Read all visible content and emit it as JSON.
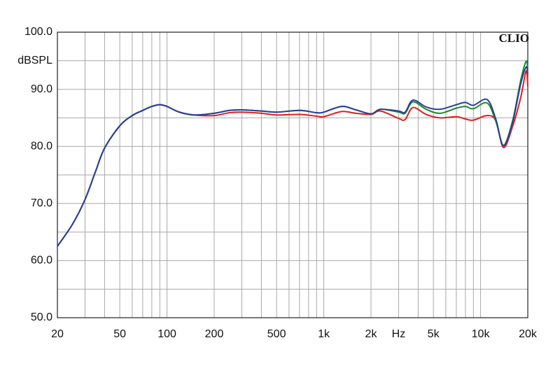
{
  "chart_data": {
    "type": "line",
    "y_label": "dBSPL",
    "badge": "CLIO",
    "xscale": "log",
    "xlim": [
      20,
      20000
    ],
    "ylim": [
      50,
      100
    ],
    "xticks": [
      20,
      50,
      100,
      200,
      500,
      {
        "value": 1000,
        "label": "1k"
      },
      {
        "value": 2000,
        "label": "2k"
      },
      {
        "value": 3000,
        "label": "Hz"
      },
      {
        "value": 5000,
        "label": "5k"
      },
      {
        "value": 10000,
        "label": "10k"
      },
      {
        "value": 20000,
        "label": "20k"
      }
    ],
    "yticks": [
      {
        "value": 50,
        "label": "50.0"
      },
      {
        "value": 60,
        "label": "60.0"
      },
      {
        "value": 70,
        "label": "70.0"
      },
      {
        "value": 80,
        "label": "80.0"
      },
      {
        "value": 90,
        "label": "90.0"
      },
      {
        "value": 100,
        "label": "100.0"
      }
    ],
    "xgrid": [
      20,
      30,
      40,
      50,
      60,
      70,
      80,
      90,
      100,
      200,
      300,
      400,
      500,
      600,
      700,
      800,
      900,
      1000,
      2000,
      3000,
      4000,
      5000,
      6000,
      7000,
      8000,
      9000,
      10000,
      20000
    ],
    "ygrid": [
      50,
      55,
      60,
      65,
      70,
      75,
      80,
      85,
      90,
      95,
      100
    ],
    "grid": true,
    "x": [
      20,
      25,
      30,
      35,
      40,
      50,
      60,
      70,
      80,
      90,
      100,
      120,
      150,
      200,
      250,
      300,
      400,
      500,
      700,
      900,
      1000,
      1300,
      1600,
      2000,
      2300,
      3000,
      3300,
      3700,
      4500,
      5500,
      7000,
      8000,
      9000,
      11000,
      12500,
      14000,
      16000,
      18000,
      19500,
      20000
    ],
    "series": [
      {
        "color": "#e01e1e",
        "values": [
          62.5,
          66.4,
          70.7,
          75.6,
          79.7,
          83.6,
          85.4,
          86.3,
          87.0,
          87.3,
          87.0,
          86.0,
          85.5,
          85.4,
          85.9,
          86.0,
          85.8,
          85.5,
          85.6,
          85.3,
          85.2,
          86.1,
          85.8,
          85.6,
          86.2,
          84.9,
          84.7,
          86.8,
          85.6,
          85.0,
          85.2,
          84.8,
          84.6,
          85.4,
          84.5,
          79.8,
          83.5,
          88.5,
          93.2,
          90.5
        ]
      },
      {
        "color": "#1c8a2c",
        "values": [
          62.5,
          66.4,
          70.7,
          75.6,
          79.7,
          83.6,
          85.4,
          86.3,
          87.0,
          87.3,
          87.0,
          86.0,
          85.5,
          85.8,
          86.3,
          86.4,
          86.2,
          86.0,
          86.3,
          85.9,
          86.0,
          87.0,
          86.4,
          85.7,
          86.5,
          86.0,
          85.8,
          87.8,
          86.5,
          85.8,
          86.7,
          87.0,
          86.6,
          87.6,
          84.4,
          80.2,
          84.5,
          91.5,
          94.9,
          93.5
        ]
      },
      {
        "color": "#2b3f9c",
        "values": [
          62.5,
          66.4,
          70.7,
          75.6,
          79.7,
          83.6,
          85.4,
          86.3,
          87.0,
          87.3,
          87.0,
          86.0,
          85.5,
          85.8,
          86.3,
          86.4,
          86.2,
          86.0,
          86.3,
          85.9,
          86.0,
          87.0,
          86.4,
          85.7,
          86.5,
          86.2,
          86.0,
          88.1,
          86.9,
          86.5,
          87.3,
          87.7,
          87.2,
          88.2,
          84.8,
          80.1,
          84.2,
          90.9,
          93.9,
          92.8
        ]
      }
    ]
  }
}
